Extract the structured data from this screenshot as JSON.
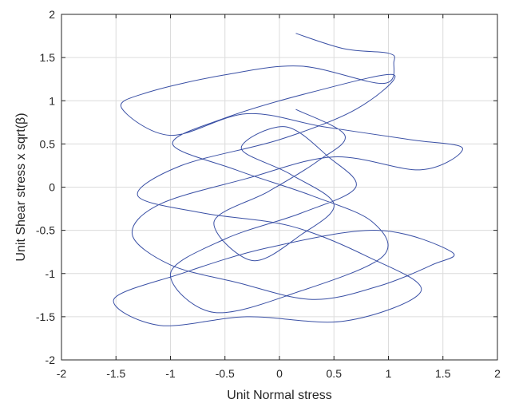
{
  "chart_data": {
    "type": "line",
    "title": "",
    "xlabel": "Unit Normal stress",
    "ylabel": "Unit Shear stress x sqrt(β)",
    "xlim": [
      -2,
      2
    ],
    "ylim": [
      -2,
      2
    ],
    "xticks": [
      -2,
      -1.5,
      -1,
      -0.5,
      0,
      0.5,
      1,
      1.5,
      2
    ],
    "yticks": [
      -2,
      -1.5,
      -1,
      -0.5,
      0,
      0.5,
      1,
      1.5,
      2
    ],
    "xtick_labels": [
      "-2",
      "-1.5",
      "-1",
      "-0.5",
      "0",
      "0.5",
      "1",
      "1.5",
      "2"
    ],
    "ytick_labels": [
      "-2",
      "-1.5",
      "-1",
      "-0.5",
      "0",
      "0.5",
      "1",
      "1.5",
      "2"
    ],
    "grid": true,
    "line_color": "#3a50a5",
    "series": [
      {
        "x": [
          0.15,
          0.6,
          1.0,
          1.05,
          0.95,
          0.2,
          -0.5,
          -1.2,
          -1.45,
          -1.0,
          -0.3,
          0.4,
          1.2,
          1.68,
          1.3,
          0.5,
          -0.3,
          -1.1,
          -1.35,
          -1.0,
          -0.4,
          0.3,
          0.9,
          1.4,
          1.58,
          0.9,
          -0.1,
          -0.9,
          -1.52,
          -1.1,
          -0.3,
          0.6,
          1.3,
          0.8,
          0.1,
          -0.7,
          -1.3,
          -0.9,
          0.0,
          0.7,
          1.05,
          0.3,
          -0.5,
          -0.98,
          -0.4,
          0.3,
          0.85,
          0.95,
          0.2,
          -0.6,
          -1.0,
          -0.5,
          0.2,
          0.7,
          0.45,
          0.05,
          -0.35,
          0.1,
          0.5,
          0.2,
          -0.25,
          -0.6,
          -0.1,
          0.35,
          0.6,
          0.15
        ],
        "y": [
          1.78,
          1.6,
          1.55,
          1.45,
          1.2,
          1.4,
          1.3,
          1.1,
          0.92,
          0.6,
          0.85,
          0.7,
          0.55,
          0.45,
          0.2,
          0.35,
          0.1,
          -0.2,
          -0.55,
          -0.9,
          -1.1,
          -1.3,
          -1.15,
          -0.9,
          -0.75,
          -0.5,
          -0.7,
          -1.0,
          -1.3,
          -1.6,
          -1.5,
          -1.55,
          -1.2,
          -0.8,
          -0.45,
          -0.3,
          -0.1,
          0.25,
          0.55,
          0.9,
          1.3,
          1.1,
          0.8,
          0.5,
          0.2,
          -0.1,
          -0.4,
          -0.8,
          -1.2,
          -1.45,
          -1.0,
          -0.6,
          -0.3,
          0.0,
          0.35,
          0.7,
          0.45,
          0.15,
          -0.2,
          -0.55,
          -0.85,
          -0.4,
          -0.05,
          0.3,
          0.6,
          0.9
        ]
      }
    ]
  }
}
